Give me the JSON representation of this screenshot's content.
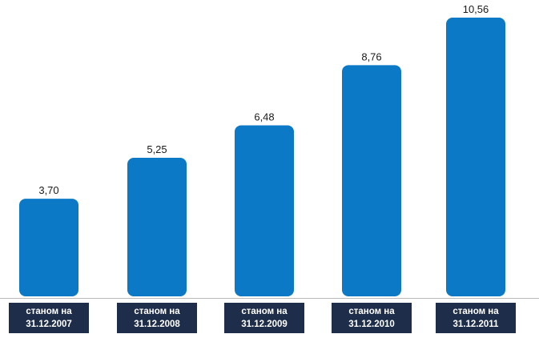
{
  "chart_data": {
    "type": "bar",
    "categories": [
      [
        "станом на",
        "31.12.2007"
      ],
      [
        "станом на",
        "31.12.2008"
      ],
      [
        "станом на",
        "31.12.2009"
      ],
      [
        "станом на",
        "31.12.2010"
      ],
      [
        "станом на",
        "31.12.2011"
      ]
    ],
    "values": [
      3.7,
      5.25,
      6.48,
      8.76,
      10.56
    ],
    "value_labels": [
      "3,70",
      "5,25",
      "6,48",
      "8,76",
      "10,56"
    ],
    "title": "",
    "xlabel": "",
    "ylabel": "",
    "ylim": [
      0,
      10.56
    ],
    "grid": false,
    "colors": {
      "bar": "#0b79c6",
      "category_box": "#1d2d4a",
      "category_text": "#ffffff",
      "value_text": "#1a1a1a"
    }
  }
}
